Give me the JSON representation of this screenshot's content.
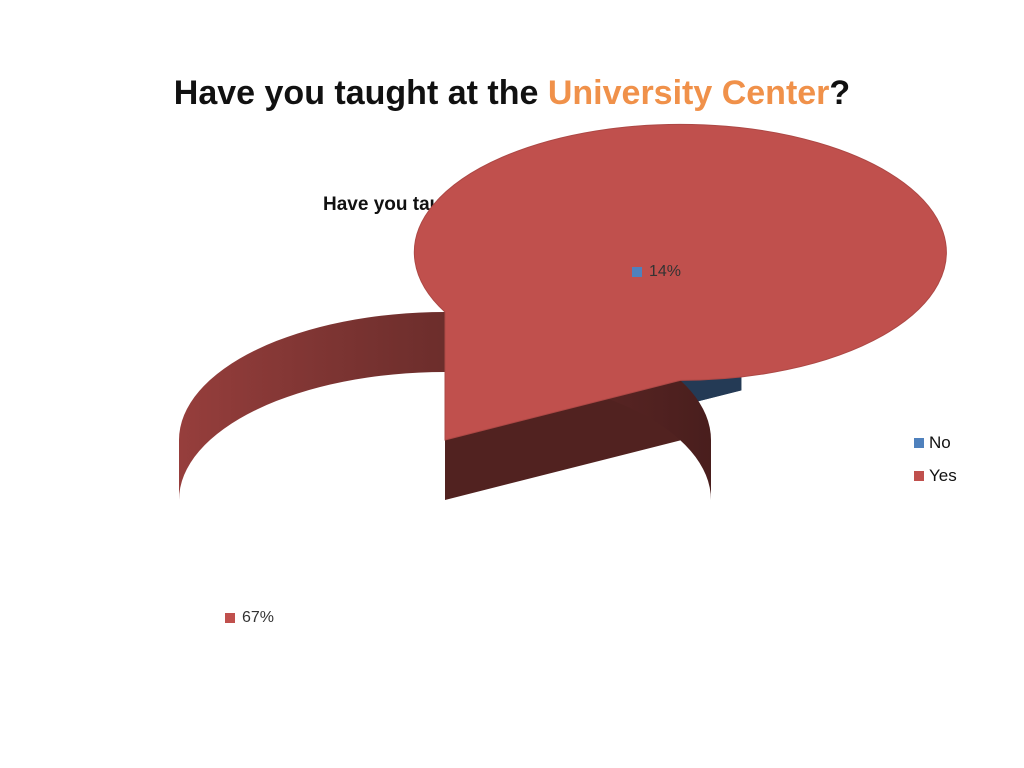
{
  "slide": {
    "title_prefix": "Have you taught at the ",
    "title_highlight": "University Center",
    "title_suffix": "?",
    "accent_color": "#F0914A"
  },
  "chart_data": {
    "type": "pie",
    "style": "3d-exploded",
    "title": "Have you taught at the University Center?",
    "categories": [
      "No",
      "Yes"
    ],
    "values": [
      14,
      67
    ],
    "data_labels": [
      "14%",
      "67%"
    ],
    "colors": [
      "#4F81BD",
      "#C0504D"
    ],
    "legend_position": "right"
  }
}
